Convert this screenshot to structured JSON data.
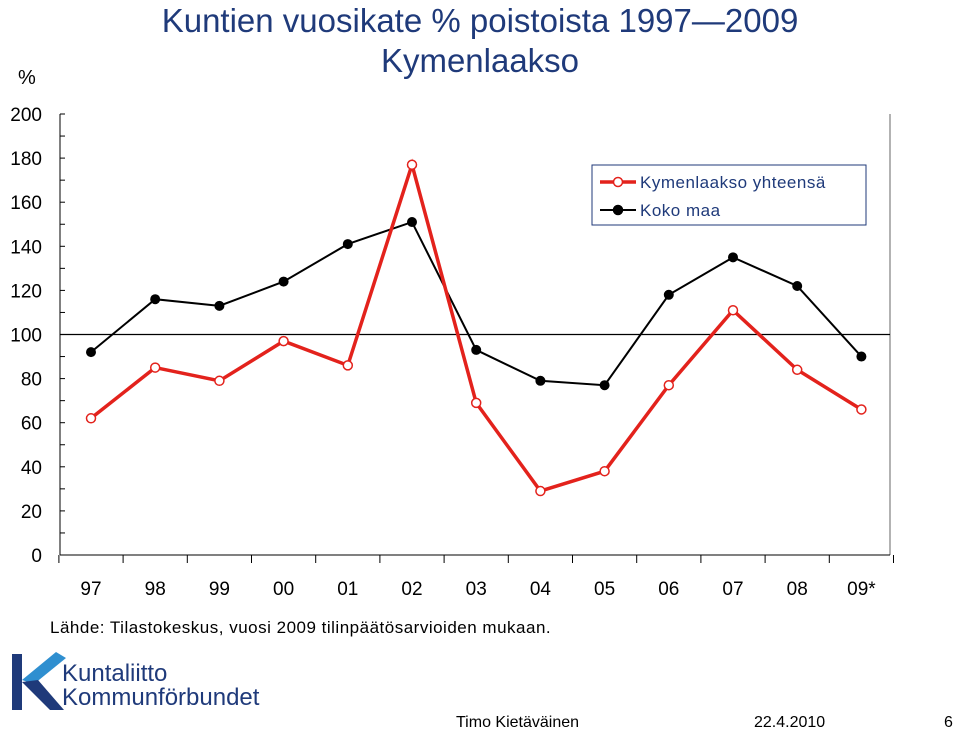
{
  "chart_data": {
    "type": "line",
    "title": "Kuntien vuosikate % poistoista 1997—2009",
    "subtitle": "Kymenlaakso",
    "ylabel": "%",
    "xlabel": "",
    "categories": [
      "97",
      "98",
      "99",
      "00",
      "01",
      "02",
      "03",
      "04",
      "05",
      "06",
      "07",
      "08",
      "09*"
    ],
    "ylim": [
      0,
      200
    ],
    "yticks": [
      0,
      20,
      40,
      60,
      80,
      100,
      120,
      140,
      160,
      180,
      200
    ],
    "reference_line": 100,
    "grid": false,
    "legend_position": "top-right",
    "series": [
      {
        "name": "Kymenlaakso yhteensä",
        "color": "#e3221c",
        "marker": "open-circle",
        "values": [
          62,
          85,
          79,
          97,
          86,
          177,
          69,
          29,
          38,
          77,
          111,
          84,
          66
        ]
      },
      {
        "name": "Koko maa",
        "color": "#000000",
        "marker": "filled-circle",
        "values": [
          92,
          116,
          113,
          124,
          141,
          151,
          93,
          79,
          77,
          118,
          135,
          122,
          90
        ]
      }
    ]
  },
  "source_note": "Lähde: Tilastokeskus, vuosi 2009 tilinpäätösarvioiden mukaan.",
  "logo": {
    "line1": "Kuntaliitto",
    "line2": "Kommunförbundet",
    "color": "#1f3a7a"
  },
  "footer": {
    "author": "Timo Kietäväinen",
    "date": "22.4.2010",
    "page": "6"
  },
  "colors": {
    "title": "#1f3a7a",
    "axis": "#000000"
  }
}
